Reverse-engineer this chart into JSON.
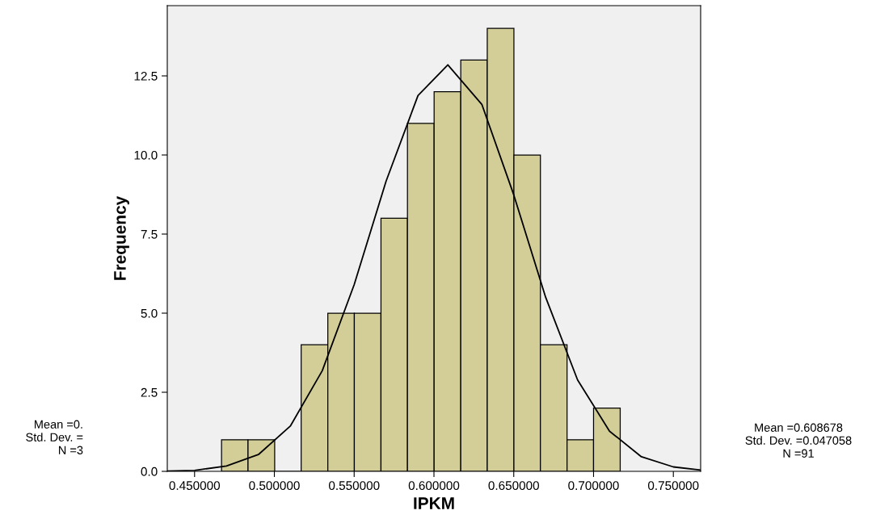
{
  "chart_data": {
    "type": "histogram",
    "xlabel": "IPKM",
    "ylabel": "Frequency",
    "bins": [
      0.4669,
      0.4835,
      0.5002,
      0.5168,
      0.5335,
      0.5501,
      0.5668,
      0.5834,
      0.6001,
      0.6168,
      0.6334,
      0.6501,
      0.6667,
      0.6834,
      0.7,
      0.7167
    ],
    "values": [
      1,
      1,
      0,
      4,
      5,
      5,
      8,
      11,
      12,
      13,
      14,
      10,
      4,
      1,
      2
    ],
    "color": "#d3ce97",
    "series": [
      {
        "type": "line",
        "color": "#000000",
        "x": [
          0.433,
          0.45,
          0.47,
          0.49,
          0.51,
          0.53,
          0.55,
          0.57,
          0.59,
          0.6087,
          0.63,
          0.65,
          0.67,
          0.69,
          0.71,
          0.73,
          0.75,
          0.767
        ],
        "values": [
          0.01,
          0.03,
          0.17,
          0.53,
          1.43,
          3.18,
          5.9,
          9.17,
          11.88,
          12.85,
          11.6,
          8.74,
          5.5,
          2.89,
          1.27,
          0.46,
          0.14,
          0.04
        ]
      }
    ],
    "xlim": [
      0.4329,
      0.7671
    ],
    "xticks": [
      {
        "value": 0.45,
        "label": "0.450000"
      },
      {
        "value": 0.5,
        "label": "0.500000"
      },
      {
        "value": 0.55,
        "label": "0.550000"
      },
      {
        "value": 0.6,
        "label": "0.600000"
      },
      {
        "value": 0.65,
        "label": "0.650000"
      },
      {
        "value": 0.7,
        "label": "0.700000"
      },
      {
        "value": 0.75,
        "label": "0.750000"
      }
    ],
    "ylim": [
      0,
      14.72
    ],
    "yticks": [
      {
        "value": 0,
        "label": "0.0"
      },
      {
        "value": 2.5,
        "label": "2.5"
      },
      {
        "value": 5,
        "label": "5.0"
      },
      {
        "value": 7.5,
        "label": "7.5"
      },
      {
        "value": 10,
        "label": "10.0"
      },
      {
        "value": 12.5,
        "label": "12.5"
      }
    ],
    "grid": false,
    "annotations": [
      "Mean =0.",
      "Std. Dev. =",
      "N =3",
      "Mean =0.608678",
      "Std. Dev. =0.047058",
      "N =91"
    ]
  }
}
